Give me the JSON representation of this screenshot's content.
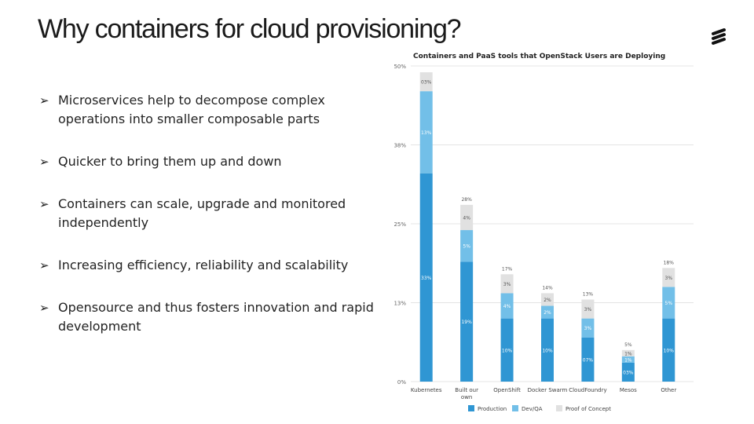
{
  "slide": {
    "title": "Why containers for cloud provisioning?",
    "bullets": [
      "Microservices help to decompose complex operations into smaller composable parts",
      "Quicker to bring them up and down",
      "Containers can scale, upgrade and monitored independently",
      "Increasing efficiency, reliability and scalability",
      "Opensource and thus fosters innovation and rapid development"
    ]
  },
  "chart_data": {
    "type": "bar",
    "stacked": true,
    "title": "Containers and PaaS tools that OpenStack Users are Deploying",
    "xlabel": "",
    "ylabel": "",
    "categories": [
      "Kubernetes",
      "Built our own",
      "OpenShift",
      "Docker Swarm",
      "CloudFoundry",
      "Mesos",
      "Other"
    ],
    "ylim": [
      0,
      50
    ],
    "yticks": [
      "0%",
      "13%",
      "25%",
      "38%",
      "50%"
    ],
    "ytick_values": [
      0,
      12.5,
      25,
      37.5,
      50
    ],
    "grid": true,
    "legend_position": "bottom",
    "series": [
      {
        "name": "Production",
        "color": "#2f96d3",
        "values": [
          33,
          19,
          10,
          10,
          7,
          3,
          10
        ],
        "labels": [
          "33%",
          "19%",
          "10%",
          "10%",
          "07%",
          "03%",
          "10%"
        ]
      },
      {
        "name": "Dev/QA",
        "color": "#72bfe8",
        "values": [
          13,
          5,
          4,
          2,
          3,
          1,
          5
        ],
        "labels": [
          "13%",
          "5%",
          "4%",
          "2%",
          "3%",
          "1%",
          "5%"
        ]
      },
      {
        "name": "Proof of Concept",
        "color": "#e1e1e1",
        "values": [
          3,
          4,
          3,
          2,
          3,
          1,
          3
        ],
        "labels": [
          "03%",
          "4%",
          "3%",
          "2%",
          "3%",
          "1%",
          "3%"
        ]
      }
    ],
    "totals": [
      "",
      "28%",
      "17%",
      "14%",
      "13%",
      "5%",
      "18%"
    ]
  }
}
